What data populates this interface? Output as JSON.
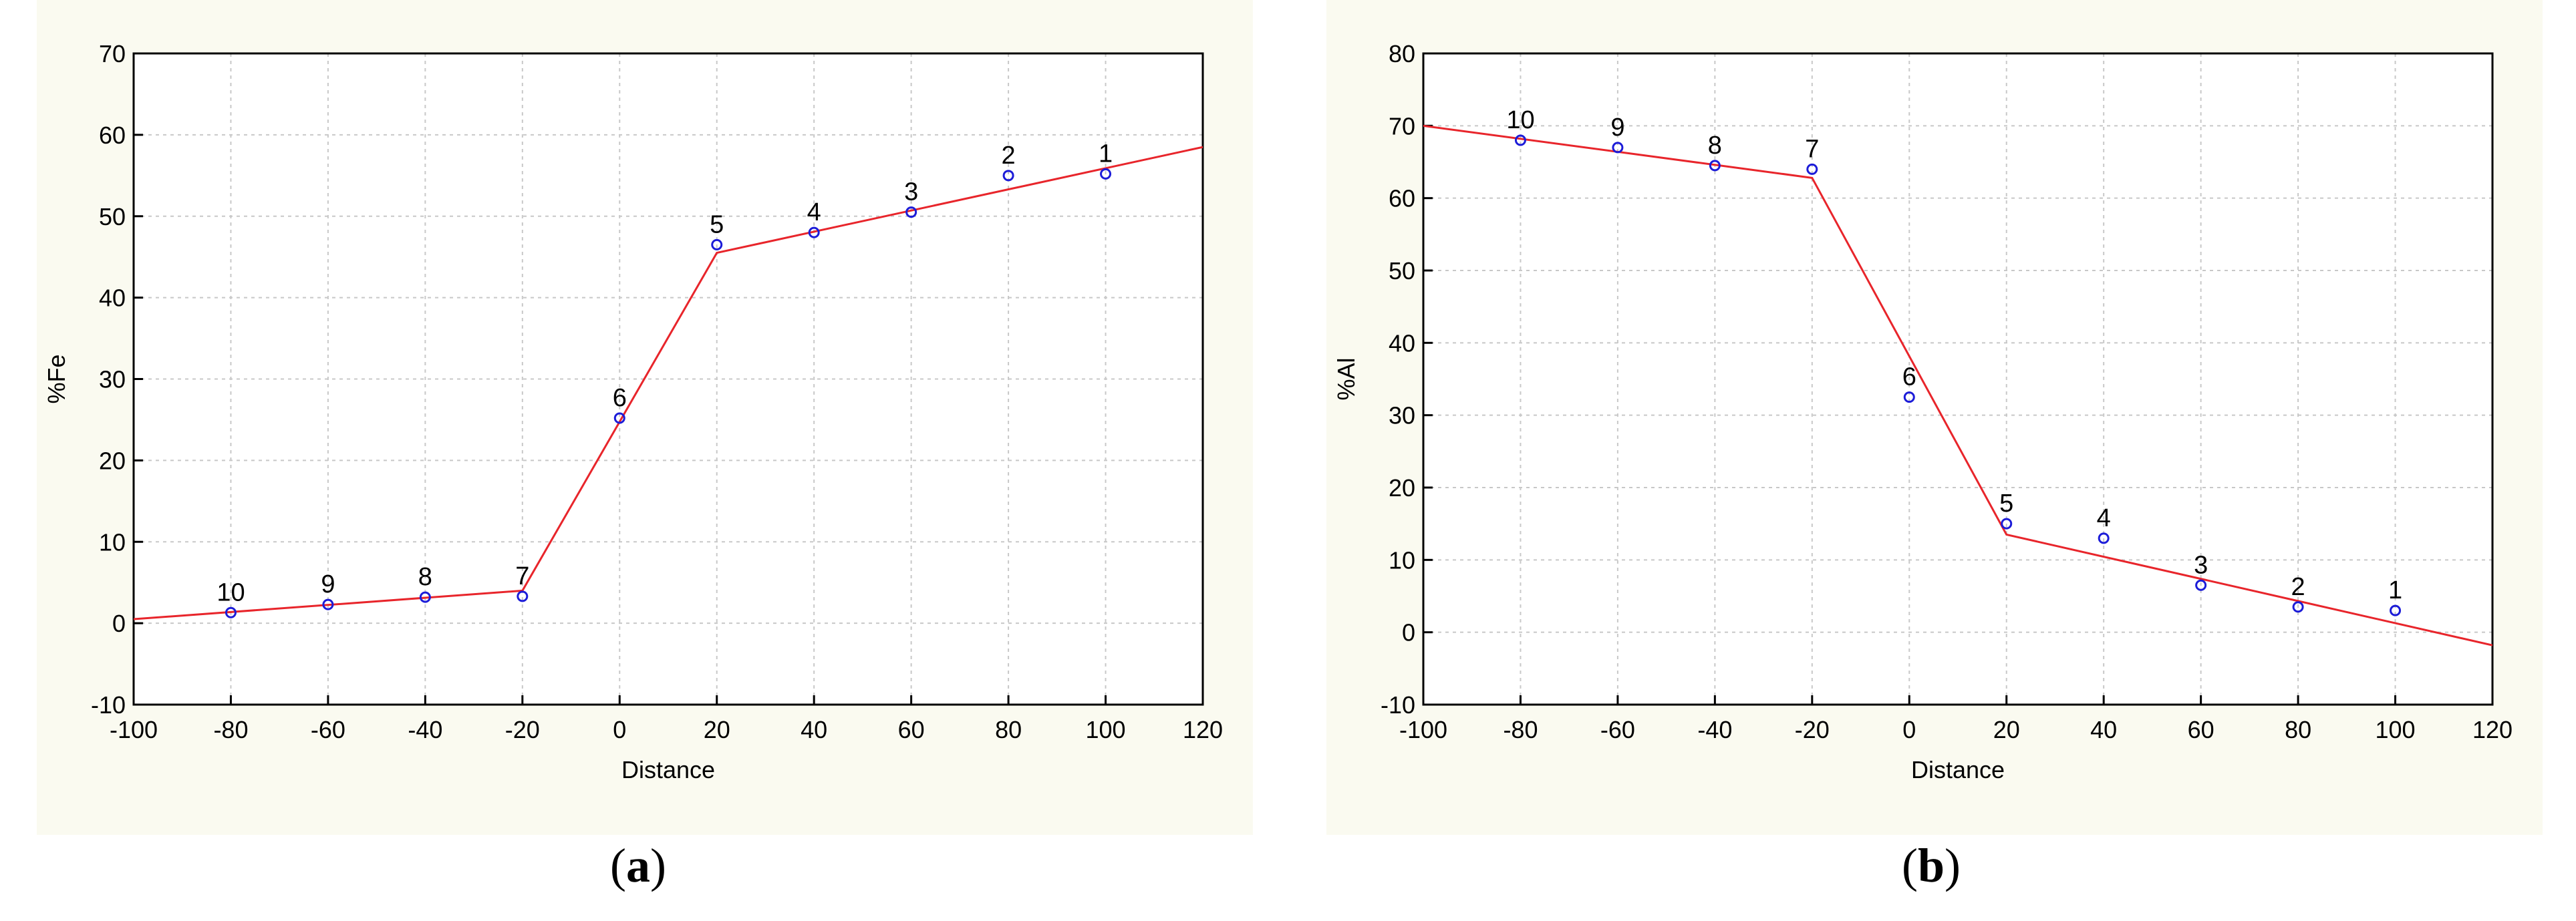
{
  "charts": [
    {
      "id": "a",
      "caption_letter": "a",
      "accent": "#e8252b",
      "chart_data": {
        "type": "scatter",
        "xlabel": "Distance",
        "ylabel": "%Fe",
        "xlim": [
          -100,
          120
        ],
        "ylim": [
          -10,
          70
        ],
        "x_ticks": [
          "-100",
          "-80",
          "-60",
          "-40",
          "-20",
          "0",
          "20",
          "40",
          "60",
          "80",
          "100",
          "120"
        ],
        "y_ticks": [
          "-10",
          "0",
          "10",
          "20",
          "30",
          "40",
          "50",
          "60",
          "70"
        ],
        "grid": true,
        "points": [
          {
            "label": "10",
            "x": -80,
            "y": 1.3
          },
          {
            "label": "9",
            "x": -60,
            "y": 2.3
          },
          {
            "label": "8",
            "x": -40,
            "y": 3.2
          },
          {
            "label": "7",
            "x": -20,
            "y": 3.3
          },
          {
            "label": "6",
            "x": 0,
            "y": 25.2
          },
          {
            "label": "5",
            "x": 20,
            "y": 46.5
          },
          {
            "label": "4",
            "x": 40,
            "y": 48.0
          },
          {
            "label": "3",
            "x": 60,
            "y": 50.5
          },
          {
            "label": "2",
            "x": 80,
            "y": 55.0
          },
          {
            "label": "1",
            "x": 100,
            "y": 55.2
          }
        ],
        "fit_line": [
          [
            -100,
            0.5
          ],
          [
            -20,
            4.0
          ],
          [
            20,
            45.5
          ],
          [
            120,
            58.5
          ]
        ]
      }
    },
    {
      "id": "b",
      "caption_letter": "b",
      "accent": "#e8252b",
      "chart_data": {
        "type": "scatter",
        "xlabel": "Distance",
        "ylabel": "%Al",
        "xlim": [
          -100,
          120
        ],
        "ylim": [
          -10,
          80
        ],
        "x_ticks": [
          "-100",
          "-80",
          "-60",
          "-40",
          "-20",
          "0",
          "20",
          "40",
          "60",
          "80",
          "100",
          "120"
        ],
        "y_ticks": [
          "-10",
          "0",
          "10",
          "20",
          "30",
          "40",
          "50",
          "60",
          "70",
          "80"
        ],
        "grid": true,
        "points": [
          {
            "label": "10",
            "x": -80,
            "y": 68.0
          },
          {
            "label": "9",
            "x": -60,
            "y": 67.0
          },
          {
            "label": "8",
            "x": -40,
            "y": 64.5
          },
          {
            "label": "7",
            "x": -20,
            "y": 64.0
          },
          {
            "label": "6",
            "x": 0,
            "y": 32.5
          },
          {
            "label": "5",
            "x": 20,
            "y": 15.0
          },
          {
            "label": "4",
            "x": 40,
            "y": 13.0
          },
          {
            "label": "3",
            "x": 60,
            "y": 6.5
          },
          {
            "label": "2",
            "x": 80,
            "y": 3.5
          },
          {
            "label": "1",
            "x": 100,
            "y": 3.0
          }
        ],
        "fit_line": [
          [
            -100,
            70.0
          ],
          [
            -20,
            62.8
          ],
          [
            20,
            13.5
          ],
          [
            120,
            -1.8
          ]
        ]
      }
    }
  ]
}
